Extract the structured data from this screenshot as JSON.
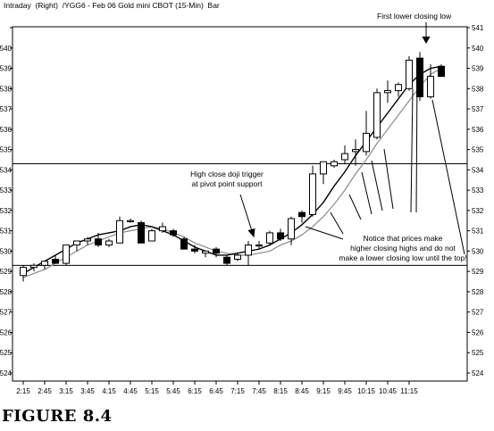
{
  "header": {
    "mode": "Intraday",
    "axis_side": "(Right)",
    "symbol_desc": "/YGG6 - Feb 06 Gold mini CBOT (15-Min)",
    "chart_style": "Bar"
  },
  "figure_caption": "FIGURE 8.4",
  "annotations": {
    "first_lower_close": "First lower closing low",
    "doji_line1": "High close doji trigger",
    "doji_line2": "at pivot point support",
    "notice_line1": "Notice that prices make",
    "notice_line2": "higher closing highs and do not",
    "notice_line3": "make a lower closing low until the top!"
  },
  "chart_data": {
    "type": "candlestick",
    "title": "",
    "xlabel": "",
    "ylabel": "",
    "ylim": [
      524,
      541
    ],
    "y_ticks": [
      524,
      525,
      526,
      527,
      528,
      529,
      530,
      531,
      532,
      533,
      534,
      535,
      536,
      537,
      538,
      539,
      540,
      541
    ],
    "y_tick_labels_left": [
      "524",
      "525",
      "526",
      "527",
      "528",
      "529",
      "530",
      "531",
      "532",
      "533",
      "534",
      "535",
      "536",
      "537",
      "538",
      "539",
      "540"
    ],
    "y_tick_labels_right": [
      "524",
      "525",
      "526",
      "527",
      "528",
      "529",
      "530",
      "531",
      "532",
      "533",
      "534",
      "535",
      "536",
      "537",
      "538",
      "539",
      "540",
      "541"
    ],
    "x_tick_labels": [
      "2:15",
      "2:45",
      "3:15",
      "3:45",
      "4:15",
      "4:45",
      "5:15",
      "5:45",
      "6:15",
      "6:45",
      "7:15",
      "7:45",
      "8:15",
      "8:45",
      "9:15",
      "9:45",
      "10:15",
      "10:45",
      "11:15"
    ],
    "horizontal_lines": [
      534.3,
      529.3
    ],
    "candles": [
      {
        "o": 528.8,
        "h": 529.3,
        "l": 528.5,
        "c": 529.2
      },
      {
        "o": 529.2,
        "h": 529.4,
        "l": 529.0,
        "c": 529.3
      },
      {
        "o": 529.3,
        "h": 529.5,
        "l": 529.1,
        "c": 529.5
      },
      {
        "o": 529.6,
        "h": 529.8,
        "l": 529.4,
        "c": 529.4
      },
      {
        "o": 529.4,
        "h": 530.3,
        "l": 529.3,
        "c": 530.3
      },
      {
        "o": 530.3,
        "h": 530.5,
        "l": 530.0,
        "c": 530.5
      },
      {
        "o": 530.5,
        "h": 530.7,
        "l": 530.3,
        "c": 530.6
      },
      {
        "o": 530.6,
        "h": 530.9,
        "l": 530.2,
        "c": 530.3
      },
      {
        "o": 530.3,
        "h": 530.6,
        "l": 530.2,
        "c": 530.5
      },
      {
        "o": 530.4,
        "h": 531.7,
        "l": 530.4,
        "c": 531.5
      },
      {
        "o": 531.5,
        "h": 531.6,
        "l": 531.4,
        "c": 531.5
      },
      {
        "o": 531.4,
        "h": 531.5,
        "l": 530.4,
        "c": 530.4
      },
      {
        "o": 530.5,
        "h": 531.1,
        "l": 530.5,
        "c": 531.0
      },
      {
        "o": 531.0,
        "h": 531.4,
        "l": 530.9,
        "c": 531.2
      },
      {
        "o": 531.0,
        "h": 531.1,
        "l": 530.7,
        "c": 530.8
      },
      {
        "o": 530.6,
        "h": 530.7,
        "l": 530.1,
        "c": 530.1
      },
      {
        "o": 530.1,
        "h": 530.3,
        "l": 529.9,
        "c": 530.0
      },
      {
        "o": 529.9,
        "h": 530.0,
        "l": 529.7,
        "c": 530.0
      },
      {
        "o": 530.1,
        "h": 530.2,
        "l": 529.7,
        "c": 529.9
      },
      {
        "o": 529.7,
        "h": 529.8,
        "l": 529.3,
        "c": 529.4
      },
      {
        "o": 529.6,
        "h": 529.9,
        "l": 529.5,
        "c": 529.8
      },
      {
        "o": 529.8,
        "h": 530.5,
        "l": 529.3,
        "c": 530.3
      },
      {
        "o": 530.3,
        "h": 530.5,
        "l": 530.1,
        "c": 530.3
      },
      {
        "o": 530.4,
        "h": 531.0,
        "l": 530.3,
        "c": 530.9
      },
      {
        "o": 530.9,
        "h": 531.1,
        "l": 530.5,
        "c": 530.6
      },
      {
        "o": 530.6,
        "h": 531.7,
        "l": 530.3,
        "c": 531.6
      },
      {
        "o": 531.9,
        "h": 532.0,
        "l": 531.4,
        "c": 531.7
      },
      {
        "o": 531.8,
        "h": 534.2,
        "l": 531.7,
        "c": 533.8
      },
      {
        "o": 533.8,
        "h": 534.4,
        "l": 533.3,
        "c": 534.4
      },
      {
        "o": 534.2,
        "h": 534.5,
        "l": 534.1,
        "c": 534.4
      },
      {
        "o": 534.5,
        "h": 535.2,
        "l": 534.3,
        "c": 534.8
      },
      {
        "o": 534.9,
        "h": 535.5,
        "l": 534.2,
        "c": 535.0
      },
      {
        "o": 534.9,
        "h": 536.9,
        "l": 534.7,
        "c": 535.8
      },
      {
        "o": 535.6,
        "h": 538.0,
        "l": 535.5,
        "c": 537.8
      },
      {
        "o": 537.8,
        "h": 538.4,
        "l": 537.3,
        "c": 537.9
      },
      {
        "o": 537.9,
        "h": 538.3,
        "l": 537.6,
        "c": 538.2
      },
      {
        "o": 538.0,
        "h": 539.6,
        "l": 537.9,
        "c": 539.4
      },
      {
        "o": 539.5,
        "h": 539.8,
        "l": 537.4,
        "c": 537.6
      },
      {
        "o": 537.6,
        "h": 539.2,
        "l": 537.5,
        "c": 538.6
      },
      {
        "o": 539.1,
        "h": 539.2,
        "l": 538.6,
        "c": 538.6
      }
    ],
    "ma_fast": [
      528.9,
      529.2,
      529.5,
      529.8,
      530.1,
      530.4,
      530.6,
      530.8,
      530.9,
      531.0,
      531.2,
      531.3,
      531.2,
      531.0,
      530.8,
      530.5,
      530.2,
      530.0,
      529.8,
      529.8,
      529.9,
      530.0,
      530.1,
      530.3,
      530.6,
      530.9,
      531.3,
      531.8,
      532.4,
      533.2,
      533.9,
      534.7,
      535.4,
      536.1,
      536.8,
      537.5,
      538.2,
      538.7,
      539.0,
      539.1
    ],
    "ma_slow": [
      528.7,
      528.9,
      529.1,
      529.4,
      529.7,
      530.0,
      530.3,
      530.5,
      530.7,
      530.9,
      531.0,
      531.1,
      531.2,
      531.1,
      530.9,
      530.7,
      530.4,
      530.2,
      530.0,
      529.9,
      529.8,
      529.8,
      529.9,
      530.0,
      530.3,
      530.5,
      530.8,
      531.2,
      531.7,
      532.3,
      533.0,
      533.8,
      534.5,
      535.3,
      536.0,
      536.7,
      537.4,
      538.1,
      538.7,
      539.0
    ]
  },
  "colors": {
    "up_candle_fill": "#ffffff",
    "down_candle_fill": "#000000",
    "ma_fast": "#000000",
    "ma_slow": "#8a8a8a",
    "grid": "#000000"
  }
}
